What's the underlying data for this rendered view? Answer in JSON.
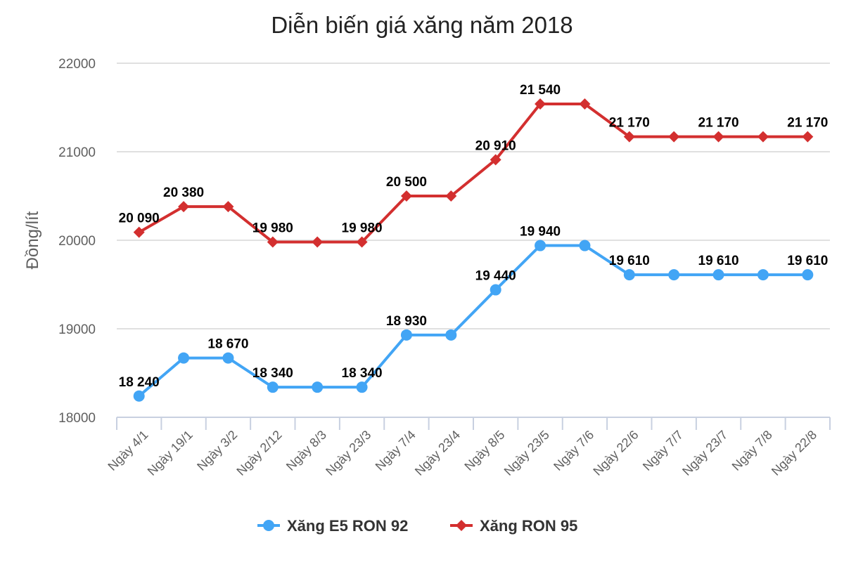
{
  "chart_data": {
    "type": "line",
    "title": "Diễn biến giá xăng năm 2018",
    "xlabel": "",
    "ylabel": "Đồng/lít",
    "ylim": [
      18000,
      22000
    ],
    "yticks": [
      18000,
      19000,
      20000,
      21000,
      22000
    ],
    "grid": true,
    "legend_position": "bottom",
    "categories": [
      "Ngày 4/1",
      "Ngày 19/1",
      "Ngày 3/2",
      "Ngày 2/12",
      "Ngày 8/3",
      "Ngày 23/3",
      "Ngày 7/4",
      "Ngày 23/4",
      "Ngày 8/5",
      "Ngày 23/5",
      "Ngày 7/6",
      "Ngày 22/6",
      "Ngày 7/7",
      "Ngày 23/7",
      "Ngày 7/8",
      "Ngày 22/8"
    ],
    "series": [
      {
        "name": "Xăng E5 RON 92",
        "color": "#42a5f5",
        "marker": "circle",
        "values": [
          18240,
          18670,
          18670,
          18340,
          18340,
          18340,
          18930,
          18930,
          19440,
          19940,
          19940,
          19610,
          19610,
          19610,
          19610,
          19610
        ],
        "labels": [
          "18 240",
          null,
          "18 670",
          "18 340",
          null,
          "18 340",
          "18 930",
          null,
          "19 440",
          "19 940",
          null,
          "19 610",
          null,
          "19 610",
          null,
          "19 610"
        ]
      },
      {
        "name": "Xăng RON 95",
        "color": "#d32f2f",
        "marker": "diamond",
        "values": [
          20090,
          20380,
          20380,
          19980,
          19980,
          19980,
          20500,
          20500,
          20910,
          21540,
          21540,
          21170,
          21170,
          21170,
          21170,
          21170
        ],
        "labels": [
          "20 090",
          "20 380",
          null,
          "19 980",
          null,
          "19 980",
          "20 500",
          null,
          "20 910",
          "21 540",
          null,
          "21 170",
          null,
          "21 170",
          null,
          "21 170"
        ]
      }
    ]
  },
  "colors": {
    "grid": "#e0e0e0",
    "axis": "#c8d0e0",
    "axis_text": "#5f5f5f",
    "title_text": "#222222"
  }
}
